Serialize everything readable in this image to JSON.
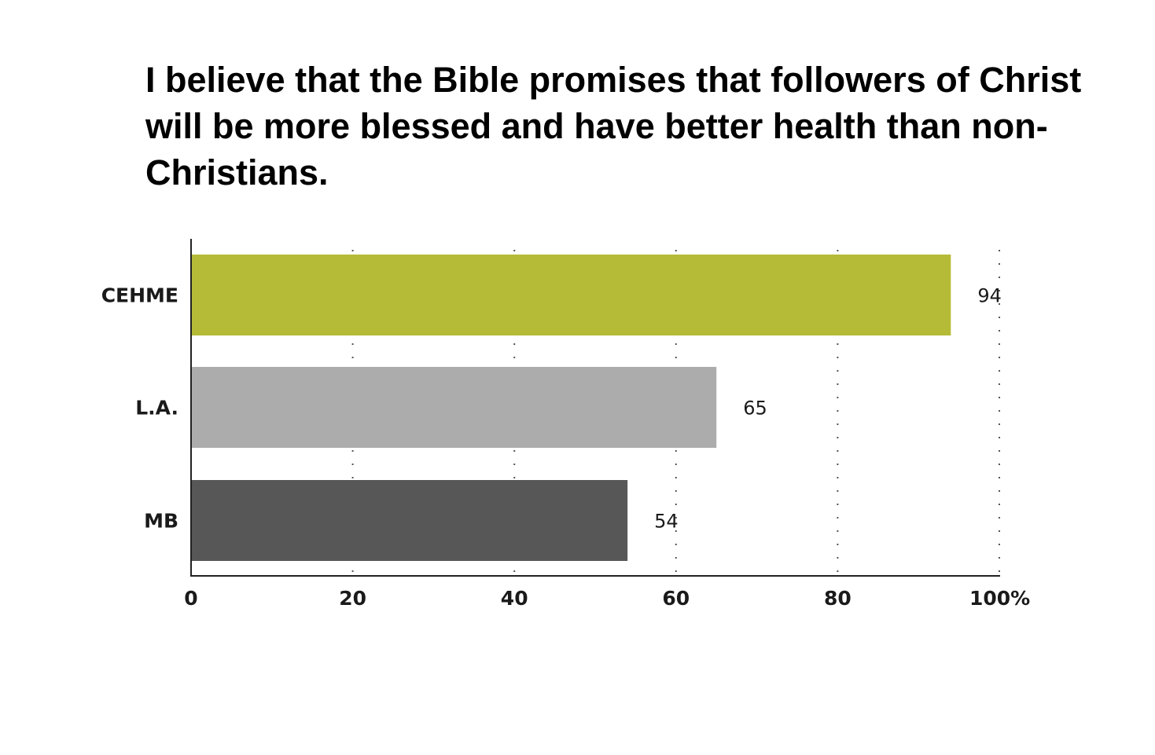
{
  "chart_data": {
    "type": "bar",
    "orientation": "horizontal",
    "title": "I believe that the Bible promises that followers of Christ will be more blessed and have better health than non-Christians.",
    "categories": [
      "CEHME",
      "L.A.",
      "MB"
    ],
    "values": [
      94,
      65,
      54
    ],
    "colors": [
      "#b5bb37",
      "#acacac",
      "#575757"
    ],
    "xlim": [
      0,
      100
    ],
    "xticks": [
      0,
      20,
      40,
      60,
      80,
      100
    ],
    "xtick_labels": [
      "0",
      "20",
      "40",
      "60",
      "80",
      "100%"
    ],
    "grid": "vertical dotted",
    "data_labels": true,
    "xlabel": "",
    "ylabel": ""
  }
}
